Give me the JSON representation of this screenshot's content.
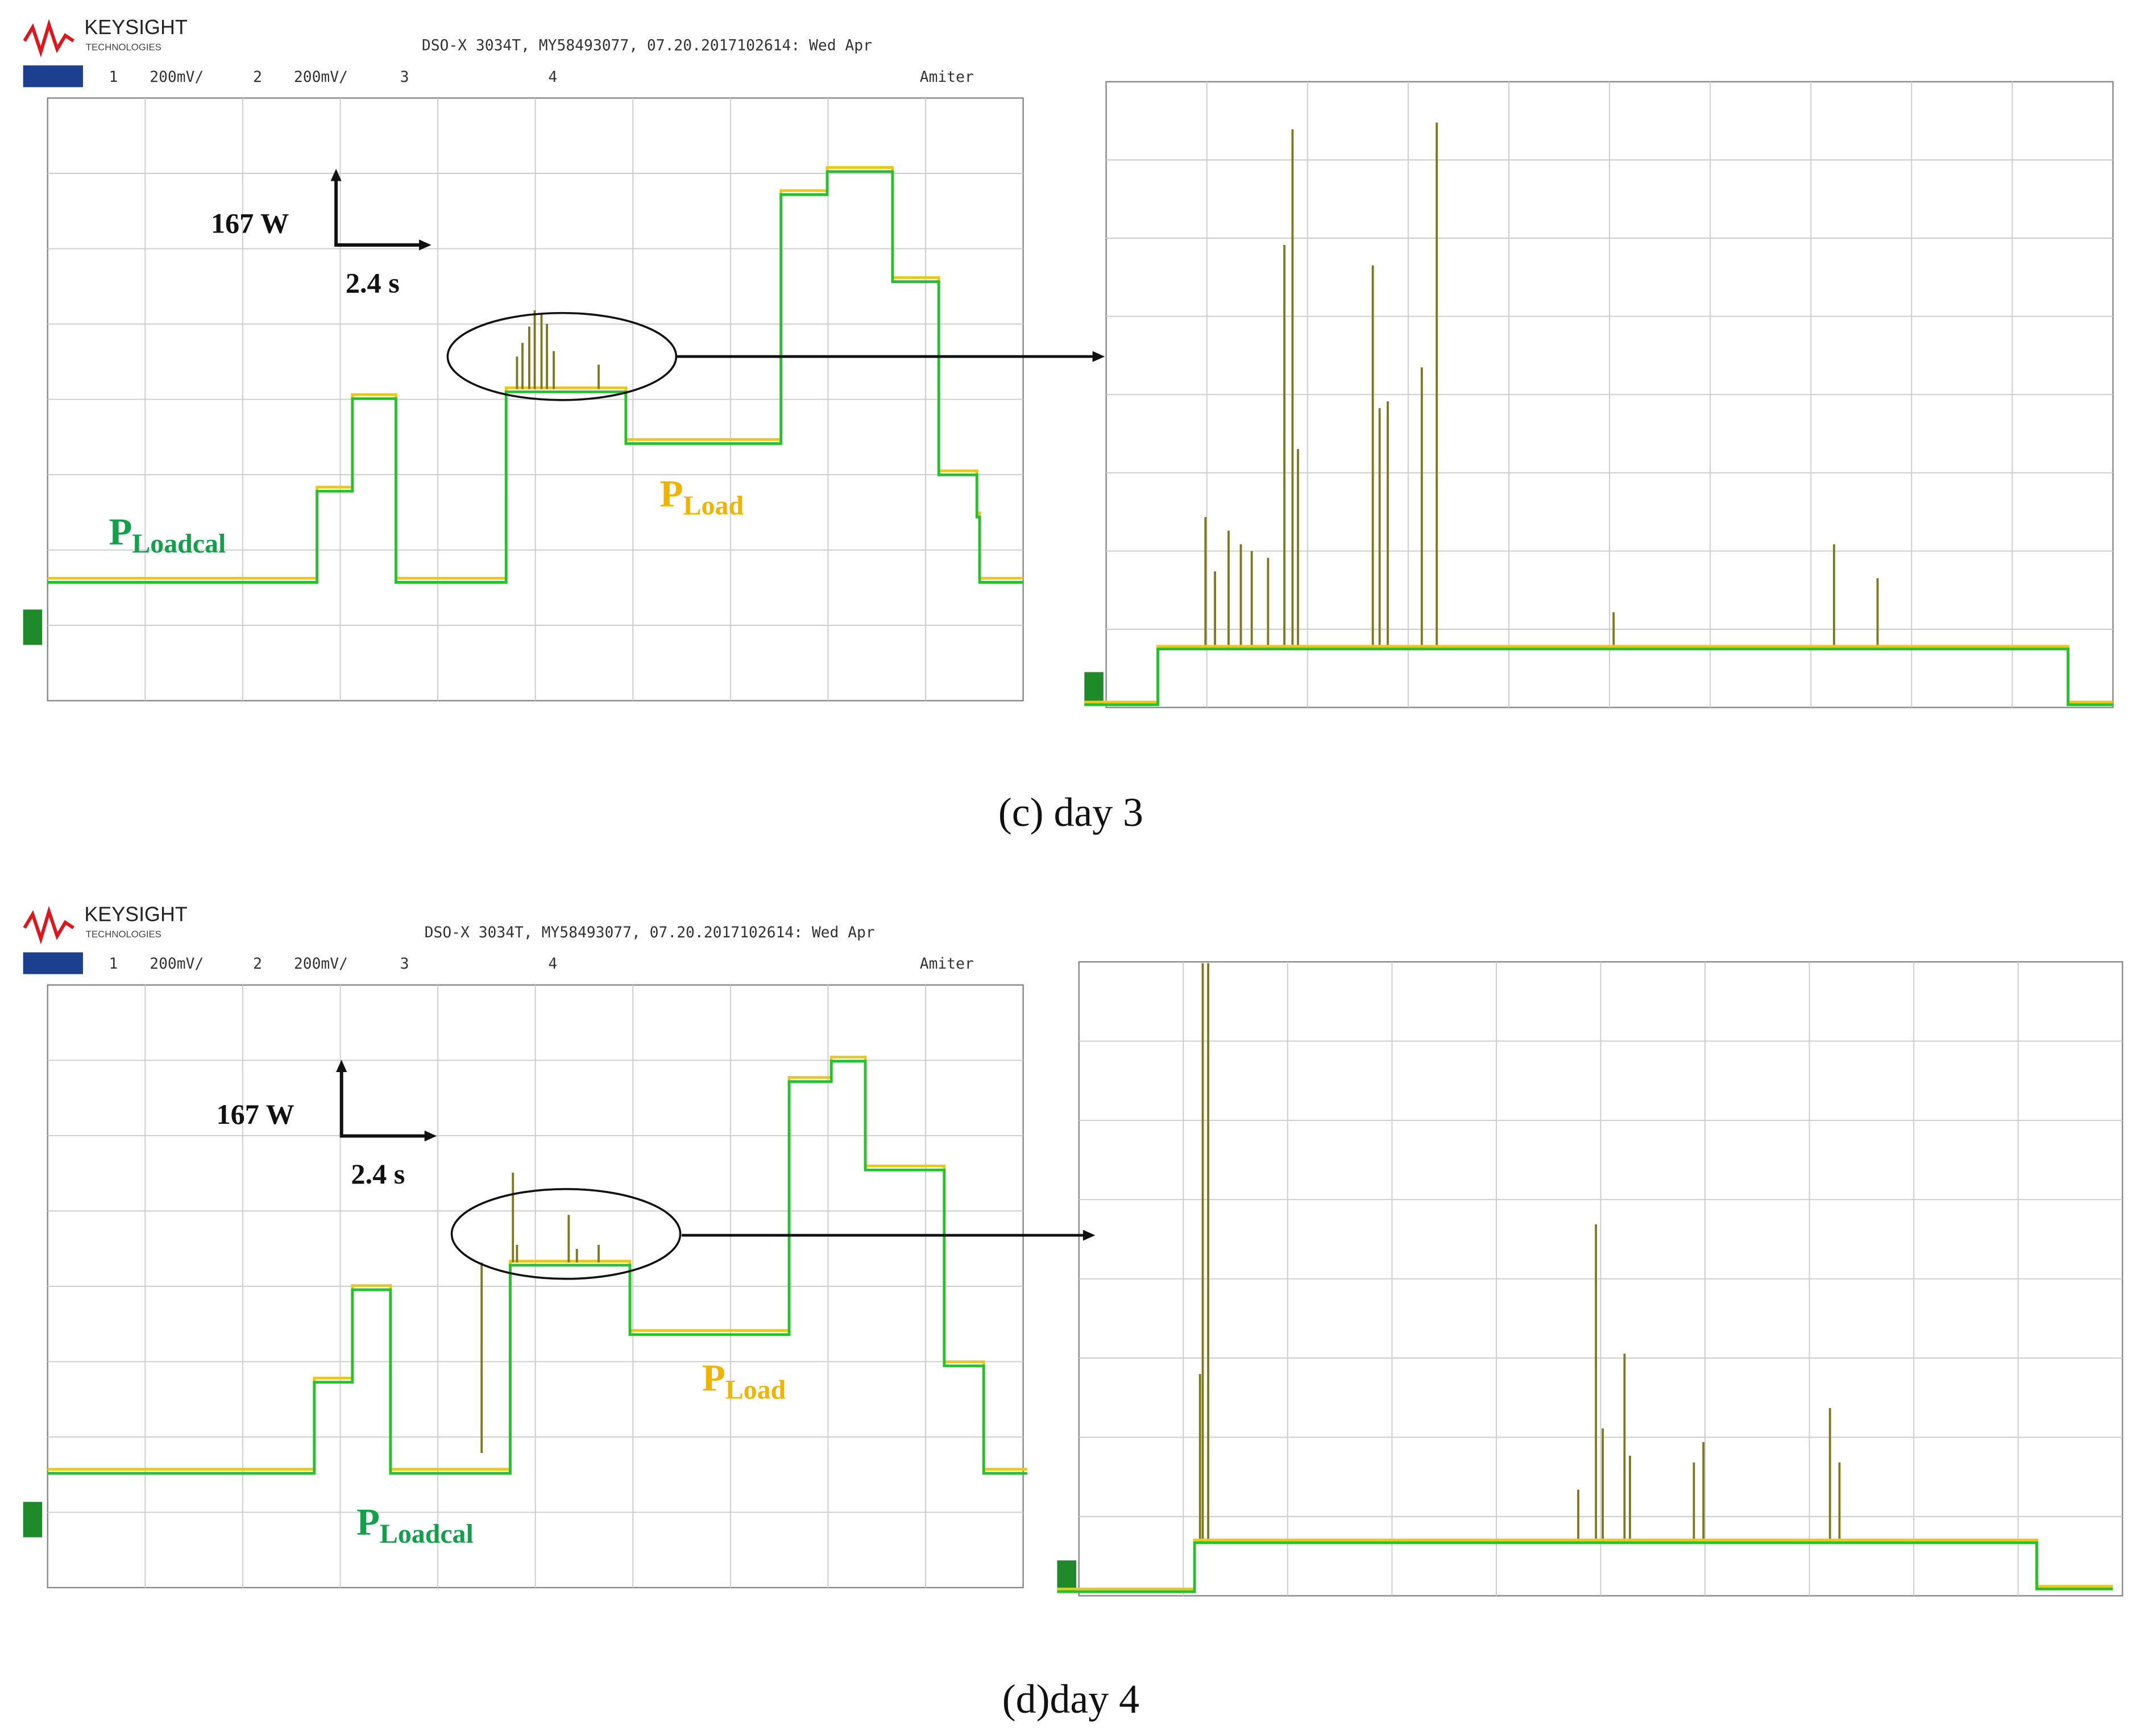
{
  "panels": [
    {
      "header": {
        "brand": "KEYSIGHT",
        "brand_sub": "TECHNOLOGIES",
        "info": "DSO-X 3034T, MY58493077, 07.20.2017102614: Wed Apr",
        "channels": [
          "1",
          "200mV/",
          "2",
          "200mV/",
          "3",
          "4"
        ],
        "right_label": "Amiter"
      },
      "scale": {
        "power": "167 W",
        "time": "2.4 s"
      },
      "labels": {
        "load_main": "P",
        "load_sub": "Load",
        "loadcal_main": "P",
        "loadcal_sub": "Loadcal"
      },
      "caption": "(c) day 3"
    },
    {
      "header": {
        "brand": "KEYSIGHT",
        "brand_sub": "TECHNOLOGIES",
        "info": "DSO-X 3034T, MY58493077, 07.20.2017102614: Wed Apr",
        "channels": [
          "1",
          "200mV/",
          "2",
          "200mV/",
          "3",
          "4"
        ],
        "right_label": "Amiter"
      },
      "scale": {
        "power": "167 W",
        "time": "2.4 s"
      },
      "labels": {
        "load_main": "P",
        "load_sub": "Load",
        "loadcal_main": "P",
        "loadcal_sub": "Loadcal"
      },
      "caption": "(d)day 4"
    }
  ]
}
